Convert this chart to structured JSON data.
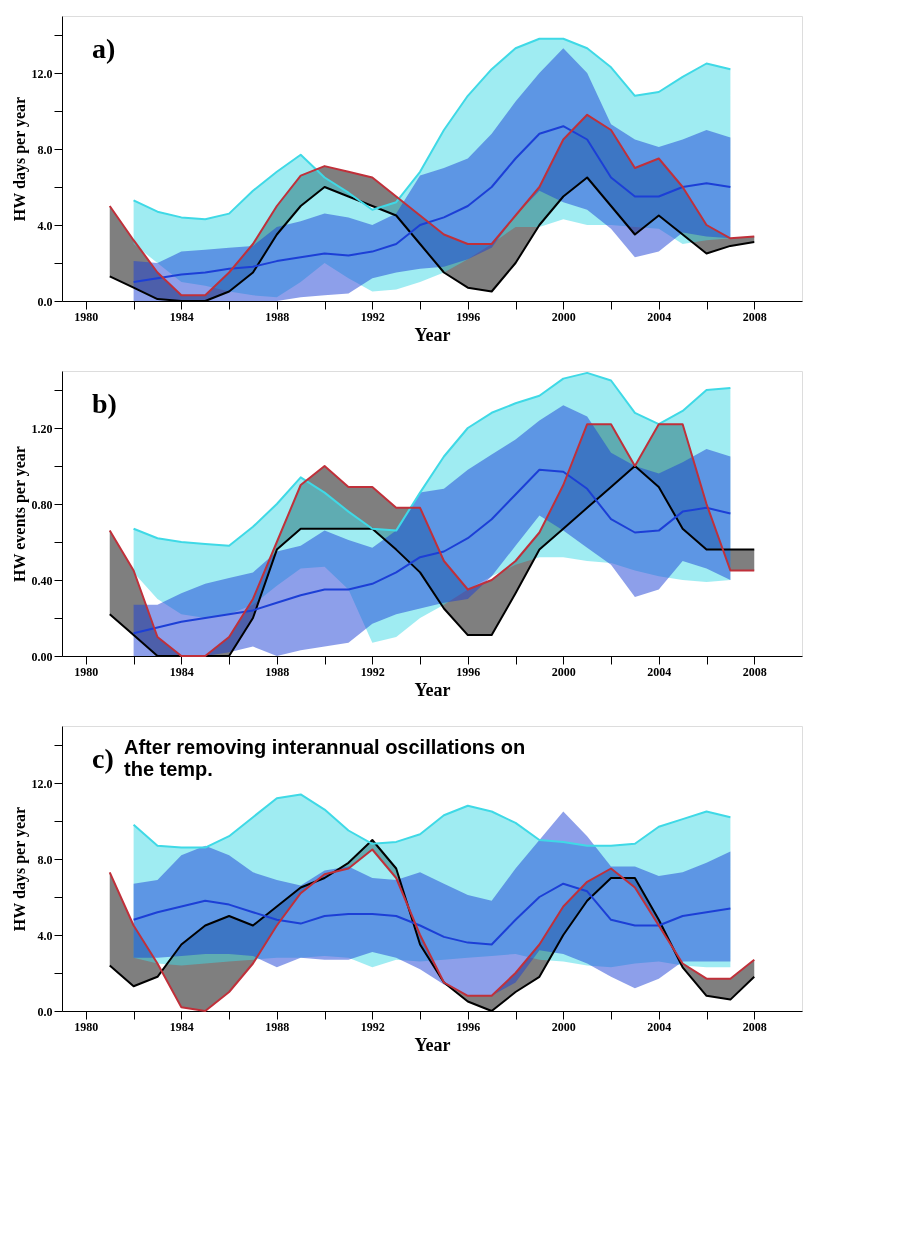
{
  "chart_data": [
    {
      "type": "line",
      "xlabel": "Year",
      "ylabel": "HW days per year",
      "annotations": [
        "a)"
      ],
      "xlim": [
        1979,
        2010
      ],
      "xticks": [
        1980,
        {
          "value": 1982,
          "label": null
        },
        1984,
        {
          "value": 1986,
          "label": null
        },
        1988,
        {
          "value": 1990,
          "label": null
        },
        1992,
        {
          "value": 1994,
          "label": null
        },
        1996,
        {
          "value": 1998,
          "label": null
        },
        2000,
        {
          "value": 2002,
          "label": null
        },
        2004,
        {
          "value": 2006,
          "label": null
        },
        2008
      ],
      "ylim": [
        0,
        15
      ],
      "yticks": [
        {
          "value": 0,
          "label": "0.0"
        },
        {
          "value": 2,
          "label": null
        },
        {
          "value": 4,
          "label": "4.0"
        },
        {
          "value": 6,
          "label": null
        },
        {
          "value": 8,
          "label": "8.0"
        },
        {
          "value": 10,
          "label": null
        },
        {
          "value": 12,
          "label": "12.0"
        },
        {
          "value": 14,
          "label": null
        }
      ],
      "grid": false,
      "series": [
        {
          "color": "#000000",
          "x": [
            1981,
            1982,
            1983,
            1984,
            1985,
            1986,
            1987,
            1988,
            1989,
            1990,
            1991,
            1992,
            1993,
            1994,
            1995,
            1996,
            1997,
            1998,
            1999,
            2000,
            2001,
            2002,
            2003,
            2004,
            2005,
            2006,
            2007,
            2008
          ],
          "values": [
            1.3,
            0.7,
            0.1,
            0.0,
            0.0,
            0.5,
            1.5,
            3.5,
            5.0,
            6.0,
            5.5,
            5.0,
            4.5,
            3.0,
            1.5,
            0.7,
            0.5,
            2.0,
            4.0,
            5.5,
            6.5,
            5.0,
            3.5,
            4.5,
            3.5,
            2.5,
            2.9,
            3.1
          ],
          "lower": [
            1.3,
            0.7,
            0.1,
            0.0,
            0.0,
            0.5,
            1.5,
            3.5,
            5.0,
            6.0,
            5.5,
            5.0,
            4.5,
            3.0,
            1.5,
            0.7,
            0.5,
            2.0,
            4.0,
            5.5,
            6.5,
            5.0,
            3.5,
            4.5,
            3.5,
            2.5,
            2.9,
            3.1
          ],
          "upper": [
            5.0,
            3.2,
            1.5,
            0.3,
            0.3,
            1.5,
            3.0,
            5.0,
            6.6,
            7.1,
            6.8,
            6.5,
            5.5,
            4.5,
            3.5,
            3.0,
            3.0,
            4.5,
            6.0,
            8.5,
            9.8,
            9.0,
            7.0,
            7.5,
            6.0,
            4.0,
            3.3,
            3.4
          ]
        },
        {
          "color": "#3fd9e6",
          "x": [
            1982,
            1983,
            1984,
            1985,
            1986,
            1987,
            1988,
            1989,
            1990,
            1991,
            1992,
            1993,
            1994,
            1995,
            1996,
            1997,
            1998,
            1999,
            2000,
            2001,
            2002,
            2003,
            2004,
            2005,
            2006,
            2007
          ],
          "values": [
            5.3,
            4.7,
            4.4,
            4.3,
            4.6,
            5.8,
            6.8,
            7.7,
            6.5,
            5.7,
            4.8,
            5.2,
            6.8,
            9.0,
            10.8,
            12.2,
            13.3,
            13.8,
            13.8,
            13.3,
            12.3,
            10.8,
            11.0,
            11.8,
            12.5,
            12.2
          ],
          "lower": [
            3.0,
            2.0,
            1.0,
            0.8,
            0.5,
            0.3,
            0.2,
            1.0,
            2.0,
            1.2,
            0.5,
            0.6,
            1.0,
            1.5,
            2.2,
            3.0,
            3.9,
            3.9,
            4.3,
            4.0,
            4.0,
            3.9,
            3.8,
            3.0,
            3.2,
            3.3
          ],
          "upper": [
            5.3,
            4.7,
            4.4,
            4.3,
            4.6,
            5.8,
            6.8,
            7.7,
            6.5,
            5.7,
            4.8,
            5.2,
            6.8,
            9.0,
            10.8,
            12.2,
            13.3,
            13.8,
            13.8,
            13.3,
            12.3,
            10.8,
            11.0,
            11.8,
            12.5,
            12.2
          ]
        },
        {
          "color": "#1c3fd6",
          "x": [
            1982,
            1983,
            1984,
            1985,
            1986,
            1987,
            1988,
            1989,
            1990,
            1991,
            1992,
            1993,
            1994,
            1995,
            1996,
            1997,
            1998,
            1999,
            2000,
            2001,
            2002,
            2003,
            2004,
            2005,
            2006,
            2007
          ],
          "values": [
            1.0,
            1.2,
            1.4,
            1.5,
            1.7,
            1.8,
            2.1,
            2.3,
            2.5,
            2.4,
            2.6,
            3.0,
            4.0,
            4.4,
            5.0,
            6.0,
            7.5,
            8.8,
            9.2,
            8.5,
            6.5,
            5.5,
            5.5,
            6.0,
            6.2,
            6.0
          ],
          "lower": [
            0.0,
            0.0,
            0.0,
            0.0,
            0.0,
            0.0,
            0.0,
            0.2,
            0.3,
            0.4,
            1.2,
            1.5,
            1.7,
            1.8,
            2.2,
            2.8,
            4.5,
            5.8,
            5.2,
            4.8,
            3.8,
            2.3,
            2.6,
            3.6,
            3.4,
            3.3
          ],
          "upper": [
            2.1,
            2.0,
            2.6,
            2.7,
            2.8,
            2.9,
            3.9,
            4.2,
            4.6,
            4.4,
            4.0,
            4.6,
            6.6,
            7.0,
            7.5,
            8.8,
            10.5,
            12.0,
            13.3,
            12.0,
            9.3,
            8.5,
            8.1,
            8.5,
            9.0,
            8.6
          ]
        },
        {
          "color": "#c0303a",
          "x": [
            1981,
            1982,
            1983,
            1984,
            1985,
            1986,
            1987,
            1988,
            1989,
            1990,
            1991,
            1992,
            1993,
            1994,
            1995,
            1996,
            1997,
            1998,
            1999,
            2000,
            2001,
            2002,
            2003,
            2004,
            2005,
            2006,
            2007,
            2008
          ],
          "values": [
            5.0,
            3.2,
            1.5,
            0.3,
            0.3,
            1.5,
            3.0,
            5.0,
            6.6,
            7.1,
            6.8,
            6.5,
            5.5,
            4.5,
            3.5,
            3.0,
            3.0,
            4.5,
            6.0,
            8.5,
            9.8,
            9.0,
            7.0,
            7.5,
            6.0,
            4.0,
            3.3,
            3.4
          ]
        }
      ]
    },
    {
      "type": "line",
      "xlabel": "Year",
      "ylabel": "HW events per year",
      "annotations": [
        "b)"
      ],
      "xlim": [
        1979,
        2010
      ],
      "xticks": [
        1980,
        {
          "value": 1982,
          "label": null
        },
        1984,
        {
          "value": 1986,
          "label": null
        },
        1988,
        {
          "value": 1990,
          "label": null
        },
        1992,
        {
          "value": 1994,
          "label": null
        },
        1996,
        {
          "value": 1998,
          "label": null
        },
        2000,
        {
          "value": 2002,
          "label": null
        },
        2004,
        {
          "value": 2006,
          "label": null
        },
        2008
      ],
      "ylim": [
        0,
        1.5
      ],
      "yticks": [
        {
          "value": 0,
          "label": "0.00"
        },
        {
          "value": 0.2,
          "label": null
        },
        {
          "value": 0.4,
          "label": "0.40"
        },
        {
          "value": 0.6,
          "label": null
        },
        {
          "value": 0.8,
          "label": "0.80"
        },
        {
          "value": 1.0,
          "label": null
        },
        {
          "value": 1.2,
          "label": "1.20"
        },
        {
          "value": 1.4,
          "label": null
        }
      ],
      "grid": false,
      "series": [
        {
          "color": "#000000",
          "x": [
            1981,
            1982,
            1983,
            1984,
            1985,
            1986,
            1987,
            1988,
            1989,
            1990,
            1991,
            1992,
            1993,
            1994,
            1995,
            1996,
            1997,
            1998,
            1999,
            2000,
            2001,
            2002,
            2003,
            2004,
            2005,
            2006,
            2007,
            2008
          ],
          "values": [
            0.22,
            0.11,
            0.0,
            0.0,
            0.0,
            0.0,
            0.2,
            0.56,
            0.67,
            0.67,
            0.67,
            0.67,
            0.56,
            0.44,
            0.25,
            0.11,
            0.11,
            0.33,
            0.56,
            0.67,
            0.78,
            0.89,
            1.0,
            0.89,
            0.67,
            0.56,
            0.56,
            0.56
          ],
          "lower": [
            0.22,
            0.11,
            0.0,
            0.0,
            0.0,
            0.0,
            0.2,
            0.56,
            0.67,
            0.67,
            0.67,
            0.67,
            0.56,
            0.44,
            0.25,
            0.11,
            0.11,
            0.33,
            0.56,
            0.67,
            0.78,
            0.89,
            1.0,
            0.89,
            0.67,
            0.56,
            0.56,
            0.56
          ],
          "upper": [
            0.66,
            0.45,
            0.1,
            0.0,
            0.0,
            0.1,
            0.3,
            0.6,
            0.9,
            1.0,
            0.89,
            0.89,
            0.78,
            0.78,
            0.5,
            0.35,
            0.4,
            0.5,
            0.65,
            0.9,
            1.22,
            1.22,
            1.0,
            1.22,
            1.22,
            0.8,
            0.45,
            0.45
          ]
        },
        {
          "color": "#3fd9e6",
          "x": [
            1982,
            1983,
            1984,
            1985,
            1986,
            1987,
            1988,
            1989,
            1990,
            1991,
            1992,
            1993,
            1994,
            1995,
            1996,
            1997,
            1998,
            1999,
            2000,
            2001,
            2002,
            2003,
            2004,
            2005,
            2006,
            2007
          ],
          "values": [
            0.67,
            0.62,
            0.6,
            0.59,
            0.58,
            0.68,
            0.8,
            0.94,
            0.86,
            0.76,
            0.67,
            0.66,
            0.86,
            1.05,
            1.2,
            1.28,
            1.33,
            1.37,
            1.46,
            1.49,
            1.45,
            1.28,
            1.22,
            1.29,
            1.4,
            1.41
          ],
          "lower": [
            0.44,
            0.3,
            0.22,
            0.2,
            0.22,
            0.27,
            0.37,
            0.46,
            0.47,
            0.35,
            0.07,
            0.1,
            0.2,
            0.27,
            0.35,
            0.42,
            0.48,
            0.52,
            0.52,
            0.5,
            0.49,
            0.45,
            0.42,
            0.4,
            0.39,
            0.4
          ],
          "upper": [
            0.67,
            0.62,
            0.6,
            0.59,
            0.58,
            0.68,
            0.8,
            0.94,
            0.86,
            0.76,
            0.67,
            0.66,
            0.86,
            1.05,
            1.2,
            1.28,
            1.33,
            1.37,
            1.46,
            1.49,
            1.45,
            1.28,
            1.22,
            1.29,
            1.4,
            1.41
          ]
        },
        {
          "color": "#1c3fd6",
          "x": [
            1982,
            1983,
            1984,
            1985,
            1986,
            1987,
            1988,
            1989,
            1990,
            1991,
            1992,
            1993,
            1994,
            1995,
            1996,
            1997,
            1998,
            1999,
            2000,
            2001,
            2002,
            2003,
            2004,
            2005,
            2006,
            2007
          ],
          "values": [
            0.12,
            0.15,
            0.18,
            0.2,
            0.22,
            0.24,
            0.28,
            0.32,
            0.35,
            0.35,
            0.38,
            0.44,
            0.52,
            0.55,
            0.62,
            0.72,
            0.85,
            0.98,
            0.97,
            0.88,
            0.72,
            0.65,
            0.66,
            0.76,
            0.78,
            0.75
          ],
          "lower": [
            0.0,
            0.0,
            0.0,
            0.0,
            0.02,
            0.05,
            0.0,
            0.03,
            0.05,
            0.07,
            0.17,
            0.22,
            0.25,
            0.28,
            0.3,
            0.42,
            0.58,
            0.74,
            0.66,
            0.57,
            0.48,
            0.31,
            0.35,
            0.5,
            0.46,
            0.4
          ],
          "upper": [
            0.27,
            0.27,
            0.33,
            0.38,
            0.41,
            0.44,
            0.55,
            0.58,
            0.66,
            0.61,
            0.57,
            0.66,
            0.86,
            0.88,
            0.98,
            1.06,
            1.14,
            1.24,
            1.32,
            1.26,
            1.07,
            1.0,
            0.96,
            1.02,
            1.09,
            1.05
          ]
        },
        {
          "color": "#c0303a",
          "x": [
            1981,
            1982,
            1983,
            1984,
            1985,
            1986,
            1987,
            1988,
            1989,
            1990,
            1991,
            1992,
            1993,
            1994,
            1995,
            1996,
            1997,
            1998,
            1999,
            2000,
            2001,
            2002,
            2003,
            2004,
            2005,
            2006,
            2007,
            2008
          ],
          "values": [
            0.66,
            0.45,
            0.1,
            0.0,
            0.0,
            0.1,
            0.3,
            0.6,
            0.9,
            1.0,
            0.89,
            0.89,
            0.78,
            0.78,
            0.5,
            0.35,
            0.4,
            0.5,
            0.65,
            0.9,
            1.22,
            1.22,
            1.0,
            1.22,
            1.22,
            0.8,
            0.45,
            0.45
          ]
        }
      ]
    },
    {
      "type": "line",
      "xlabel": "Year",
      "ylabel": "HW days per year",
      "annotations": [
        "c)",
        "After removing interannual oscillations on the temp."
      ],
      "xlim": [
        1979,
        2010
      ],
      "xticks": [
        1980,
        {
          "value": 1982,
          "label": null
        },
        1984,
        {
          "value": 1986,
          "label": null
        },
        1988,
        {
          "value": 1990,
          "label": null
        },
        1992,
        {
          "value": 1994,
          "label": null
        },
        1996,
        {
          "value": 1998,
          "label": null
        },
        2000,
        {
          "value": 2002,
          "label": null
        },
        2004,
        {
          "value": 2006,
          "label": null
        },
        2008
      ],
      "ylim": [
        0,
        15
      ],
      "yticks": [
        {
          "value": 0,
          "label": "0.0"
        },
        {
          "value": 2,
          "label": null
        },
        {
          "value": 4,
          "label": "4.0"
        },
        {
          "value": 6,
          "label": null
        },
        {
          "value": 8,
          "label": "8.0"
        },
        {
          "value": 10,
          "label": null
        },
        {
          "value": 12,
          "label": "12.0"
        },
        {
          "value": 14,
          "label": null
        }
      ],
      "grid": false,
      "series": [
        {
          "color": "#000000",
          "x": [
            1981,
            1982,
            1983,
            1984,
            1985,
            1986,
            1987,
            1988,
            1989,
            1990,
            1991,
            1992,
            1993,
            1994,
            1995,
            1996,
            1997,
            1998,
            1999,
            2000,
            2001,
            2002,
            2003,
            2004,
            2005,
            2006,
            2007,
            2008
          ],
          "values": [
            2.4,
            1.3,
            1.8,
            3.5,
            4.5,
            5.0,
            4.5,
            5.5,
            6.5,
            7.0,
            7.8,
            9.0,
            7.5,
            3.5,
            1.5,
            0.5,
            0.0,
            1.0,
            1.8,
            4.0,
            5.8,
            7.0,
            7.0,
            4.8,
            2.3,
            0.8,
            0.6,
            1.8
          ],
          "lower": [
            2.4,
            1.3,
            1.8,
            3.5,
            4.5,
            5.0,
            4.5,
            5.5,
            6.5,
            7.0,
            7.8,
            9.0,
            7.5,
            3.5,
            1.5,
            0.5,
            0.0,
            1.0,
            1.8,
            4.0,
            5.8,
            7.0,
            7.0,
            4.8,
            2.3,
            0.8,
            0.6,
            1.8
          ],
          "upper": [
            7.3,
            4.5,
            2.5,
            0.2,
            0.0,
            1.0,
            2.5,
            4.5,
            6.2,
            7.2,
            7.5,
            8.5,
            7.0,
            4.0,
            1.5,
            0.8,
            0.8,
            2.0,
            3.5,
            5.5,
            6.8,
            7.5,
            6.5,
            4.5,
            2.5,
            1.7,
            1.7,
            2.7
          ]
        },
        {
          "color": "#3fd9e6",
          "x": [
            1982,
            1983,
            1984,
            1985,
            1986,
            1987,
            1988,
            1989,
            1990,
            1991,
            1992,
            1993,
            1994,
            1995,
            1996,
            1997,
            1998,
            1999,
            2000,
            2001,
            2002,
            2003,
            2004,
            2005,
            2006,
            2007
          ],
          "values": [
            9.8,
            8.7,
            8.6,
            8.6,
            9.2,
            10.2,
            11.2,
            11.4,
            10.6,
            9.5,
            8.8,
            8.9,
            9.3,
            10.3,
            10.8,
            10.5,
            9.9,
            9.0,
            8.9,
            8.7,
            8.7,
            8.8,
            9.7,
            10.1,
            10.5,
            10.2
          ],
          "lower": [
            2.8,
            2.5,
            2.4,
            2.5,
            2.6,
            2.7,
            2.8,
            2.8,
            2.9,
            2.8,
            2.3,
            2.7,
            2.6,
            2.7,
            2.8,
            2.9,
            3.0,
            2.7,
            2.6,
            2.4,
            2.3,
            2.5,
            2.6,
            2.4,
            2.3,
            2.3
          ],
          "upper": [
            9.8,
            8.7,
            8.6,
            8.6,
            9.2,
            10.2,
            11.2,
            11.4,
            10.6,
            9.5,
            8.8,
            8.9,
            9.3,
            10.3,
            10.8,
            10.5,
            9.9,
            9.0,
            8.9,
            8.7,
            8.7,
            8.8,
            9.7,
            10.1,
            10.5,
            10.2
          ]
        },
        {
          "color": "#1c3fd6",
          "x": [
            1982,
            1983,
            1984,
            1985,
            1986,
            1987,
            1988,
            1989,
            1990,
            1991,
            1992,
            1993,
            1994,
            1995,
            1996,
            1997,
            1998,
            1999,
            2000,
            2001,
            2002,
            2003,
            2004,
            2005,
            2006,
            2007
          ],
          "values": [
            4.8,
            5.2,
            5.5,
            5.8,
            5.6,
            5.2,
            4.8,
            4.6,
            5.0,
            5.1,
            5.1,
            5.0,
            4.5,
            3.9,
            3.6,
            3.5,
            4.8,
            6.0,
            6.7,
            6.3,
            4.8,
            4.5,
            4.5,
            5.0,
            5.2,
            5.4
          ],
          "lower": [
            2.8,
            2.8,
            2.9,
            3.0,
            3.0,
            2.9,
            2.3,
            2.8,
            2.7,
            2.7,
            3.1,
            2.8,
            2.2,
            1.4,
            0.8,
            0.8,
            1.5,
            3.2,
            3.0,
            2.5,
            1.8,
            1.2,
            1.7,
            2.6,
            2.6,
            2.6
          ],
          "upper": [
            6.7,
            6.9,
            8.2,
            8.7,
            8.2,
            7.3,
            6.9,
            6.6,
            7.4,
            7.6,
            7.0,
            6.9,
            7.3,
            6.7,
            6.1,
            5.8,
            7.5,
            9.0,
            10.5,
            9.2,
            7.6,
            7.6,
            7.1,
            7.3,
            7.8,
            8.4
          ]
        },
        {
          "color": "#c0303a",
          "x": [
            1981,
            1982,
            1983,
            1984,
            1985,
            1986,
            1987,
            1988,
            1989,
            1990,
            1991,
            1992,
            1993,
            1994,
            1995,
            1996,
            1997,
            1998,
            1999,
            2000,
            2001,
            2002,
            2003,
            2004,
            2005,
            2006,
            2007,
            2008
          ],
          "values": [
            7.3,
            4.5,
            2.5,
            0.2,
            0.0,
            1.0,
            2.5,
            4.5,
            6.2,
            7.2,
            7.5,
            8.5,
            7.0,
            4.0,
            1.5,
            0.8,
            0.8,
            2.0,
            3.5,
            5.5,
            6.8,
            7.5,
            6.5,
            4.5,
            2.5,
            1.7,
            1.7,
            2.7
          ]
        }
      ]
    }
  ]
}
